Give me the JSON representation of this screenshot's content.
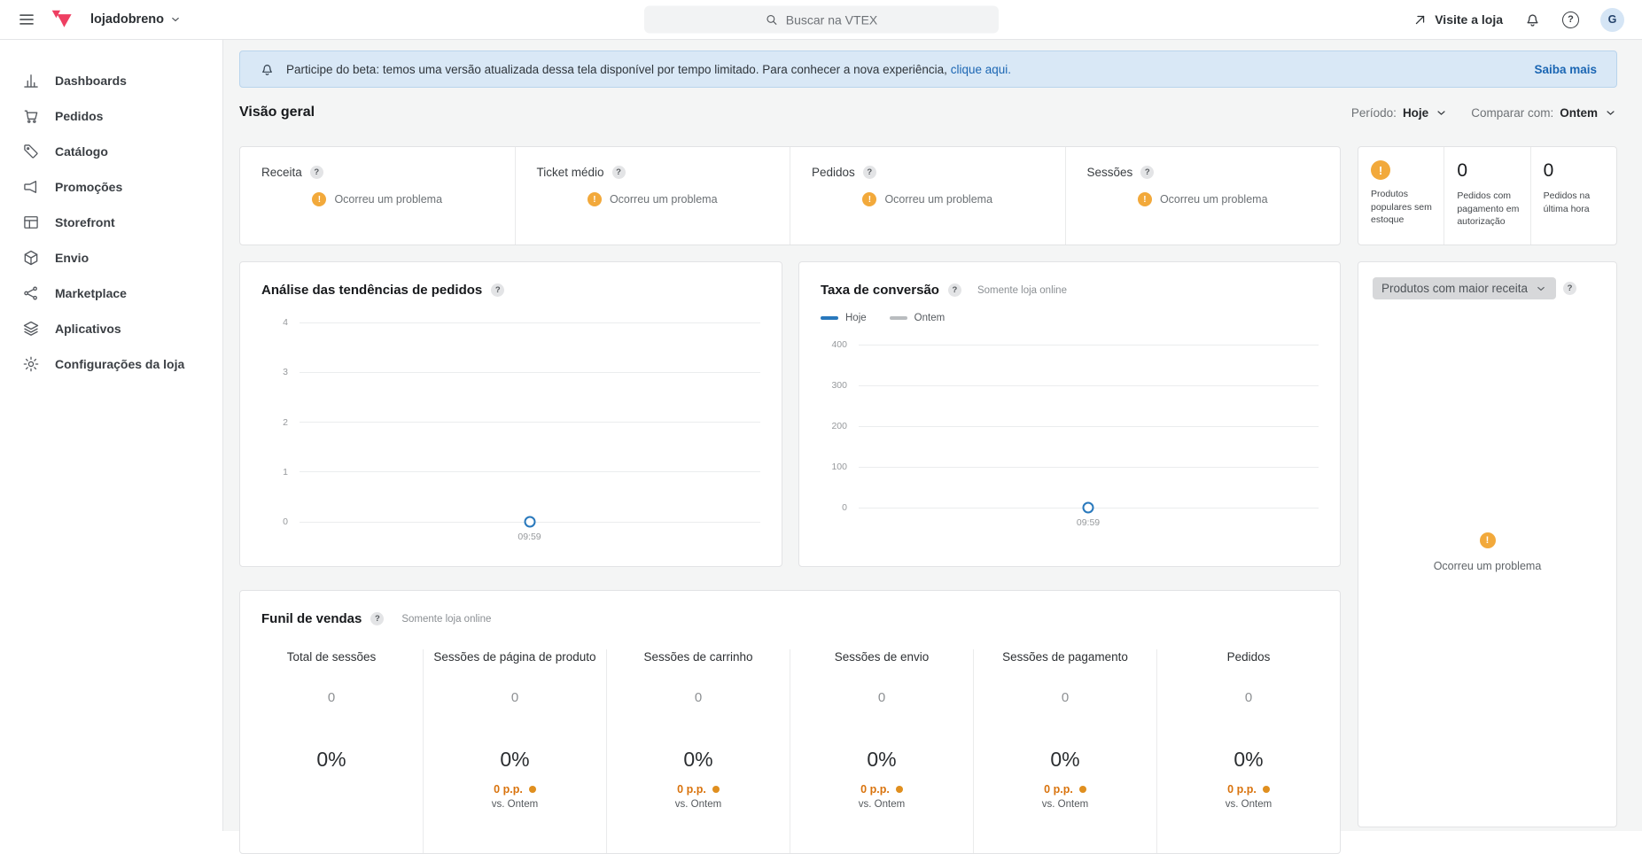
{
  "topbar": {
    "store_name": "lojadobreno",
    "search_placeholder": "Buscar na VTEX",
    "visit_store_label": "Visite a loja",
    "avatar_initial": "G"
  },
  "sidebar": {
    "items": [
      {
        "label": "Dashboards",
        "icon": "bar-chart-icon"
      },
      {
        "label": "Pedidos",
        "icon": "cart-icon"
      },
      {
        "label": "Catálogo",
        "icon": "tag-icon"
      },
      {
        "label": "Promoções",
        "icon": "megaphone-icon"
      },
      {
        "label": "Storefront",
        "icon": "storefront-icon"
      },
      {
        "label": "Envio",
        "icon": "package-icon"
      },
      {
        "label": "Marketplace",
        "icon": "network-icon"
      },
      {
        "label": "Aplicativos",
        "icon": "layers-icon"
      },
      {
        "label": "Configurações da loja",
        "icon": "gear-icon"
      }
    ]
  },
  "banner": {
    "text": "Participe do beta: temos uma versão atualizada dessa tela disponível por tempo limitado. Para conhecer a nova experiência,",
    "link_label": "clique aqui.",
    "action_label": "Saiba mais"
  },
  "page": {
    "title": "Visão geral",
    "period_label": "Período:",
    "period_value": "Hoje",
    "compare_label": "Comparar com:",
    "compare_value": "Ontem"
  },
  "kpis": {
    "error_text": "Ocorreu um problema",
    "cards": [
      {
        "label": "Receita"
      },
      {
        "label": "Ticket médio"
      },
      {
        "label": "Pedidos"
      },
      {
        "label": "Sessões"
      }
    ]
  },
  "quick_stats": {
    "items": [
      {
        "icon": "warning-icon",
        "value": null,
        "label": "Produtos populares sem estoque"
      },
      {
        "icon": null,
        "value": "0",
        "label": "Pedidos com pagamento em autorização"
      },
      {
        "icon": null,
        "value": "0",
        "label": "Pedidos na última hora"
      }
    ]
  },
  "colors": {
    "accent_blue": "#2878bc",
    "legend_gray": "#b9bcbf",
    "warning_orange": "#f2a93b",
    "delta_orange": "#d9730d",
    "link_blue": "#1b66b3",
    "brand_pink": "#ee3f62"
  },
  "chart_data": [
    {
      "type": "line",
      "title": "Análise das tendências de pedidos",
      "subtitle": "",
      "yticks": [
        4,
        3,
        2,
        1,
        0
      ],
      "ylim": [
        0,
        4
      ],
      "x": [
        "09:59"
      ],
      "series": [
        {
          "name": "Pedidos",
          "values": [
            0
          ]
        }
      ],
      "grid": true,
      "legend_position": "none"
    },
    {
      "type": "line",
      "title": "Taxa de conversão",
      "subtitle": "Somente loja online",
      "yticks": [
        400,
        300,
        200,
        100,
        0
      ],
      "ylim": [
        0,
        400
      ],
      "x": [
        "09:59"
      ],
      "series": [
        {
          "name": "Hoje",
          "values": [
            0
          ],
          "color": "#2878bc"
        },
        {
          "name": "Ontem",
          "values": [],
          "color": "#b9bcbf"
        }
      ],
      "grid": true,
      "legend_position": "top-left"
    }
  ],
  "top_products_panel": {
    "selector_value": "Produtos com maior receita",
    "error_text": "Ocorreu um problema"
  },
  "funnel": {
    "title": "Funil de vendas",
    "subtitle": "Somente loja online",
    "vs_label": "vs. Ontem",
    "columns": [
      {
        "label": "Total de sessões",
        "value": "0",
        "rate": "0%",
        "delta": null
      },
      {
        "label": "Sessões de página de produto",
        "value": "0",
        "rate": "0%",
        "delta": "0 p.p."
      },
      {
        "label": "Sessões de carrinho",
        "value": "0",
        "rate": "0%",
        "delta": "0 p.p."
      },
      {
        "label": "Sessões de envio",
        "value": "0",
        "rate": "0%",
        "delta": "0 p.p."
      },
      {
        "label": "Sessões de pagamento",
        "value": "0",
        "rate": "0%",
        "delta": "0 p.p."
      },
      {
        "label": "Pedidos",
        "value": "0",
        "rate": "0%",
        "delta": "0 p.p."
      }
    ]
  }
}
